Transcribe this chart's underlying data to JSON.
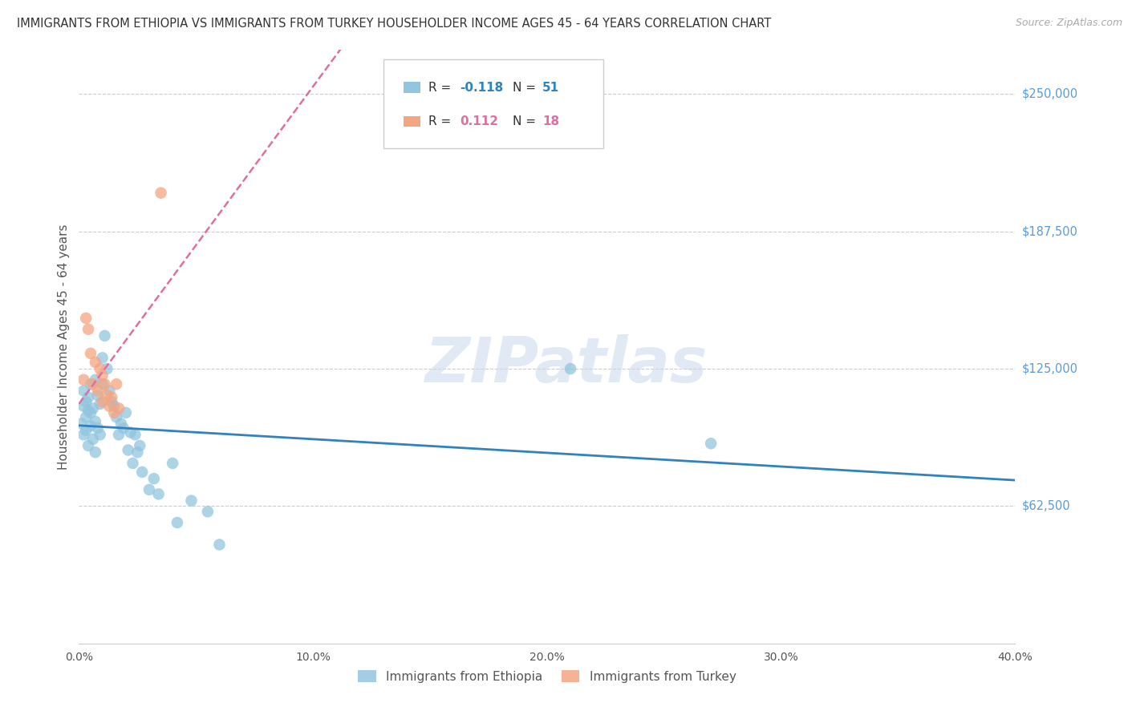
{
  "title": "IMMIGRANTS FROM ETHIOPIA VS IMMIGRANTS FROM TURKEY HOUSEHOLDER INCOME AGES 45 - 64 YEARS CORRELATION CHART",
  "source": "Source: ZipAtlas.com",
  "ylabel": "Householder Income Ages 45 - 64 years",
  "xlim": [
    0,
    0.4
  ],
  "ylim": [
    0,
    270000
  ],
  "xticks": [
    0.0,
    0.05,
    0.1,
    0.15,
    0.2,
    0.25,
    0.3,
    0.35,
    0.4
  ],
  "xticklabels": [
    "0.0%",
    "",
    "10.0%",
    "",
    "20.0%",
    "",
    "30.0%",
    "",
    "40.0%"
  ],
  "ytick_vals": [
    62500,
    125000,
    187500,
    250000
  ],
  "ytick_labels": [
    "$62,500",
    "$125,000",
    "$187,500",
    "$250,000"
  ],
  "legend1_r": "-0.118",
  "legend1_n": "51",
  "legend2_r": "0.112",
  "legend2_n": "18",
  "legend_label1": "Immigrants from Ethiopia",
  "legend_label2": "Immigrants from Turkey",
  "blue_color": "#92c5de",
  "pink_color": "#f4a582",
  "blue_line_color": "#3182bd",
  "pink_line_color": "#de6fa1",
  "axis_color": "#5b9bd5",
  "watermark": "ZIPatlas",
  "grid_color": "#cccccc",
  "eth_x": [
    0.001,
    0.002,
    0.002,
    0.002,
    0.003,
    0.003,
    0.003,
    0.004,
    0.004,
    0.004,
    0.005,
    0.005,
    0.005,
    0.006,
    0.006,
    0.007,
    0.007,
    0.007,
    0.008,
    0.008,
    0.009,
    0.009,
    0.01,
    0.01,
    0.011,
    0.012,
    0.013,
    0.014,
    0.015,
    0.016,
    0.017,
    0.018,
    0.019,
    0.02,
    0.021,
    0.022,
    0.023,
    0.024,
    0.025,
    0.026,
    0.027,
    0.03,
    0.032,
    0.034,
    0.04,
    0.042,
    0.048,
    0.055,
    0.06,
    0.27,
    0.21
  ],
  "eth_y": [
    100000,
    108000,
    95000,
    115000,
    103000,
    110000,
    97000,
    106000,
    112000,
    90000,
    118000,
    99000,
    105000,
    107000,
    93000,
    120000,
    101000,
    87000,
    113000,
    98000,
    109000,
    95000,
    130000,
    118000,
    140000,
    125000,
    115000,
    110000,
    108000,
    103000,
    95000,
    100000,
    98000,
    105000,
    88000,
    96000,
    82000,
    95000,
    87000,
    90000,
    78000,
    70000,
    75000,
    68000,
    82000,
    55000,
    65000,
    60000,
    45000,
    91000,
    125000
  ],
  "tur_x": [
    0.002,
    0.003,
    0.004,
    0.005,
    0.006,
    0.007,
    0.008,
    0.009,
    0.01,
    0.01,
    0.011,
    0.012,
    0.013,
    0.014,
    0.015,
    0.016,
    0.017,
    0.035
  ],
  "tur_y": [
    120000,
    148000,
    143000,
    132000,
    118000,
    128000,
    115000,
    125000,
    122000,
    110000,
    118000,
    113000,
    108000,
    112000,
    105000,
    118000,
    107000,
    205000
  ]
}
